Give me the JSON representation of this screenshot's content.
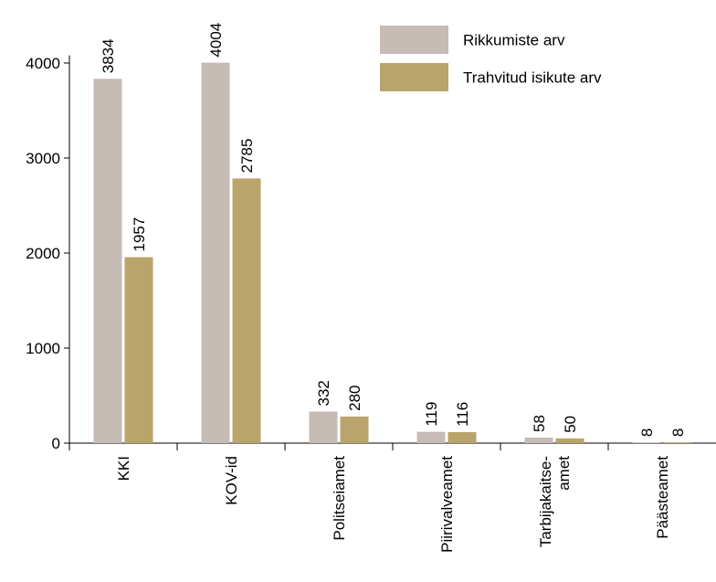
{
  "chart_data": {
    "type": "bar",
    "categories": [
      [
        "KKI"
      ],
      [
        "KOV-id"
      ],
      [
        "Politseiamet"
      ],
      [
        "Piirivalveamet"
      ],
      [
        "Tarbijakaitse-",
        "amet"
      ],
      [
        "Päästeamet"
      ]
    ],
    "series": [
      {
        "name": "Rikkumiste arv",
        "color": "#c6bbb5",
        "values": [
          3834,
          4004,
          332,
          119,
          58,
          8
        ]
      },
      {
        "name": "Trahvitud isikute arv",
        "color": "#b9a46b",
        "values": [
          1957,
          2785,
          280,
          116,
          50,
          8
        ]
      }
    ],
    "yticks": [
      0,
      1000,
      2000,
      3000,
      4000
    ],
    "ylim": [
      0,
      4004
    ],
    "grid": false,
    "legend_position": "top-right"
  }
}
